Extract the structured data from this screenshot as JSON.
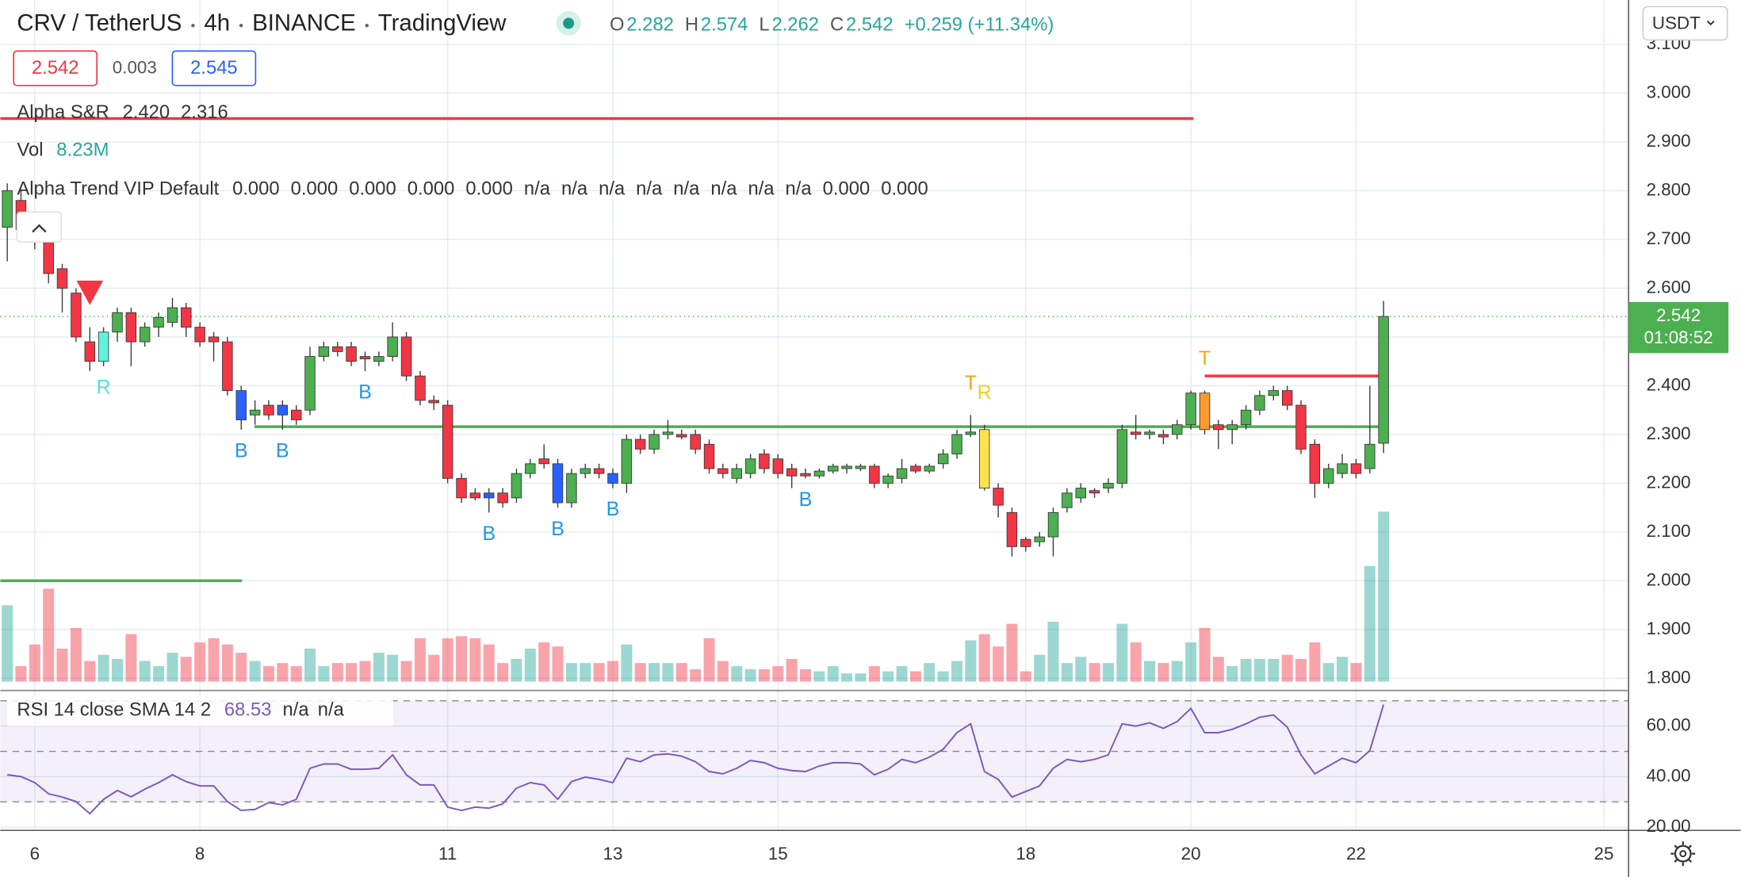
{
  "header": {
    "symbol": "CRV / TetherUS",
    "interval": "4h",
    "exchange": "BINANCE",
    "source": "TradingView",
    "ohlc": [
      {
        "key": "O",
        "value": "2.282"
      },
      {
        "key": "H",
        "value": "2.574"
      },
      {
        "key": "L",
        "value": "2.262"
      },
      {
        "key": "C",
        "value": "2.542"
      }
    ],
    "change": "+0.259 (+11.34%)",
    "sell": "2.542",
    "spread": "0.003",
    "buy": "2.545",
    "currency": "USDT"
  },
  "chart_data": [
    {
      "type": "candlestick",
      "x": [
        5.667,
        5.833,
        6,
        6.167,
        6.333,
        6.5,
        6.667,
        6.833,
        7,
        7.167,
        7.333,
        7.5,
        7.667,
        7.833,
        8,
        8.167,
        8.333,
        8.5,
        8.667,
        8.833,
        9,
        9.167,
        9.333,
        9.5,
        9.667,
        9.833,
        10,
        10.167,
        10.333,
        10.5,
        10.667,
        10.833,
        11,
        11.167,
        11.333,
        11.5,
        11.667,
        11.833,
        12,
        12.167,
        12.333,
        12.5,
        12.667,
        12.833,
        13,
        13.167,
        13.333,
        13.5,
        13.667,
        13.833,
        14,
        14.167,
        14.333,
        14.5,
        14.667,
        14.833,
        15,
        15.167,
        15.333,
        15.5,
        15.667,
        15.833,
        16,
        16.167,
        16.333,
        16.5,
        16.667,
        16.833,
        17,
        17.167,
        17.333,
        17.5,
        17.667,
        17.833,
        18,
        18.167,
        18.333,
        18.5,
        18.667,
        18.833,
        19,
        19.167,
        19.333,
        19.5,
        19.667,
        19.833,
        20,
        20.167,
        20.333,
        20.5,
        20.667,
        20.833,
        21,
        21.167,
        21.333,
        21.5,
        21.667,
        21.833,
        22,
        22.167,
        22.333
      ],
      "open": [
        2.725,
        2.78,
        2.72,
        2.7,
        2.64,
        2.59,
        2.49,
        2.45,
        2.51,
        2.55,
        2.49,
        2.52,
        2.53,
        2.56,
        2.52,
        2.5,
        2.49,
        2.39,
        2.34,
        2.36,
        2.36,
        2.35,
        2.35,
        2.46,
        2.48,
        2.48,
        2.46,
        2.45,
        2.46,
        2.5,
        2.42,
        2.37,
        2.36,
        2.21,
        2.18,
        2.18,
        2.18,
        2.17,
        2.22,
        2.25,
        2.24,
        2.16,
        2.22,
        2.23,
        2.22,
        2.2,
        2.29,
        2.27,
        2.3,
        2.3,
        2.3,
        2.28,
        2.23,
        2.21,
        2.22,
        2.26,
        2.25,
        2.23,
        2.22,
        2.215,
        2.225,
        2.23,
        2.23,
        2.235,
        2.2,
        2.21,
        2.235,
        2.225,
        2.24,
        2.26,
        2.3,
        2.31,
        2.19,
        2.14,
        2.085,
        2.08,
        2.09,
        2.15,
        2.17,
        2.185,
        2.19,
        2.2,
        2.305,
        2.3,
        2.3,
        2.3,
        2.32,
        2.385,
        2.32,
        2.31,
        2.32,
        2.35,
        2.38,
        2.39,
        2.36,
        2.28,
        2.2,
        2.22,
        2.24,
        2.23,
        2.282
      ],
      "high": [
        2.815,
        2.8,
        2.73,
        2.71,
        2.65,
        2.6,
        2.52,
        2.52,
        2.56,
        2.56,
        2.53,
        2.55,
        2.58,
        2.57,
        2.53,
        2.51,
        2.5,
        2.4,
        2.37,
        2.37,
        2.37,
        2.36,
        2.48,
        2.49,
        2.49,
        2.49,
        2.47,
        2.47,
        2.53,
        2.51,
        2.43,
        2.38,
        2.37,
        2.22,
        2.19,
        2.19,
        2.19,
        2.23,
        2.25,
        2.28,
        2.25,
        2.23,
        2.24,
        2.24,
        2.23,
        2.3,
        2.3,
        2.31,
        2.33,
        2.31,
        2.31,
        2.29,
        2.24,
        2.24,
        2.26,
        2.27,
        2.26,
        2.24,
        2.23,
        2.23,
        2.24,
        2.24,
        2.24,
        2.24,
        2.22,
        2.25,
        2.24,
        2.24,
        2.27,
        2.31,
        2.34,
        2.32,
        2.2,
        2.15,
        2.09,
        2.1,
        2.15,
        2.19,
        2.2,
        2.19,
        2.21,
        2.32,
        2.34,
        2.31,
        2.31,
        2.33,
        2.39,
        2.39,
        2.33,
        2.33,
        2.36,
        2.39,
        2.4,
        2.4,
        2.37,
        2.29,
        2.24,
        2.26,
        2.25,
        2.4,
        2.574
      ],
      "low": [
        2.655,
        2.7,
        2.68,
        2.61,
        2.55,
        2.49,
        2.43,
        2.44,
        2.49,
        2.44,
        2.48,
        2.5,
        2.52,
        2.5,
        2.48,
        2.45,
        2.38,
        2.31,
        2.32,
        2.33,
        2.31,
        2.32,
        2.34,
        2.45,
        2.46,
        2.44,
        2.43,
        2.44,
        2.45,
        2.41,
        2.36,
        2.35,
        2.2,
        2.16,
        2.165,
        2.14,
        2.15,
        2.16,
        2.21,
        2.23,
        2.15,
        2.15,
        2.21,
        2.21,
        2.19,
        2.18,
        2.26,
        2.26,
        2.29,
        2.29,
        2.26,
        2.22,
        2.21,
        2.2,
        2.21,
        2.22,
        2.21,
        2.19,
        2.21,
        2.21,
        2.22,
        2.22,
        2.225,
        2.19,
        2.19,
        2.2,
        2.22,
        2.22,
        2.23,
        2.25,
        2.295,
        2.185,
        2.13,
        2.05,
        2.06,
        2.07,
        2.05,
        2.14,
        2.16,
        2.17,
        2.18,
        2.19,
        2.29,
        2.29,
        2.28,
        2.29,
        2.31,
        2.3,
        2.27,
        2.28,
        2.31,
        2.34,
        2.37,
        2.35,
        2.26,
        2.17,
        2.19,
        2.21,
        2.21,
        2.22,
        2.262
      ],
      "close": [
        2.8,
        2.72,
        2.7,
        2.63,
        2.6,
        2.5,
        2.45,
        2.51,
        2.55,
        2.49,
        2.52,
        2.54,
        2.56,
        2.52,
        2.49,
        2.49,
        2.39,
        2.33,
        2.35,
        2.34,
        2.34,
        2.33,
        2.46,
        2.48,
        2.47,
        2.45,
        2.455,
        2.46,
        2.5,
        2.42,
        2.37,
        2.365,
        2.21,
        2.17,
        2.17,
        2.17,
        2.16,
        2.22,
        2.24,
        2.24,
        2.16,
        2.22,
        2.23,
        2.22,
        2.2,
        2.29,
        2.27,
        2.3,
        2.305,
        2.295,
        2.27,
        2.23,
        2.22,
        2.23,
        2.25,
        2.23,
        2.22,
        2.215,
        2.215,
        2.225,
        2.235,
        2.235,
        2.235,
        2.2,
        2.215,
        2.23,
        2.225,
        2.235,
        2.26,
        2.3,
        2.305,
        2.19,
        2.155,
        2.07,
        2.07,
        2.09,
        2.14,
        2.18,
        2.19,
        2.18,
        2.2,
        2.31,
        2.3,
        2.305,
        2.295,
        2.32,
        2.385,
        2.31,
        2.31,
        2.32,
        2.35,
        2.38,
        2.39,
        2.36,
        2.27,
        2.2,
        2.23,
        2.24,
        2.22,
        2.28,
        2.542
      ],
      "up_color": "#4caf50",
      "down_color": "#f23645",
      "highlights": [
        {
          "x": 6.833,
          "color": "#5ff3dc"
        },
        {
          "x": 8.5,
          "color": "#2962ff"
        },
        {
          "x": 9,
          "color": "#2962ff"
        },
        {
          "x": 11.5,
          "color": "#2962ff"
        },
        {
          "x": 12.333,
          "color": "#2962ff"
        },
        {
          "x": 13,
          "color": "#2962ff"
        },
        {
          "x": 17.5,
          "color": "#ffe14d"
        },
        {
          "x": 20.167,
          "color": "#ff9a2e"
        }
      ],
      "xlim": [
        5.583,
        25.3
      ],
      "xticks": [
        6,
        8,
        11,
        13,
        15,
        18,
        20,
        22,
        25
      ],
      "ylim": [
        1.775,
        3.191
      ],
      "yticks": [
        {
          "value": 1.8,
          "label": "1.800"
        },
        {
          "value": 1.9,
          "label": "1.900"
        },
        {
          "value": 2,
          "label": "2.000"
        },
        {
          "value": 2.1,
          "label": "2.100"
        },
        {
          "value": 2.2,
          "label": "2.200"
        },
        {
          "value": 2.3,
          "label": "2.300"
        },
        {
          "value": 2.4,
          "label": "2.400"
        },
        {
          "value": 2.5,
          "label": "2.500"
        },
        {
          "value": 2.6,
          "label": "2.600"
        },
        {
          "value": 2.7,
          "label": "2.700"
        },
        {
          "value": 2.8,
          "label": "2.800"
        },
        {
          "value": 2.9,
          "label": "2.900"
        },
        {
          "value": 3,
          "label": "3.000"
        },
        {
          "value": 3.1,
          "label": "3.100"
        }
      ],
      "grid": true,
      "last_price": {
        "value": 2.542,
        "label": "2.542",
        "countdown": "01:08:52",
        "color": "#4caf50"
      },
      "volume": {
        "name": "Vol",
        "value_label": "8.23M",
        "ylim": [
          0,
          33
        ],
        "up_color": "#26a69a",
        "down_color": "#f23645",
        "values": [
          3.7,
          0.75,
          1.8,
          4.5,
          1.6,
          2.6,
          1.0,
          1.3,
          1.1,
          2.3,
          1.0,
          0.75,
          1.4,
          1.2,
          1.9,
          2.1,
          1.8,
          1.4,
          1.0,
          0.75,
          0.9,
          0.75,
          1.6,
          0.75,
          0.9,
          0.9,
          1.0,
          1.4,
          1.3,
          1.0,
          2.1,
          1.3,
          2.1,
          2.2,
          2.1,
          1.8,
          0.9,
          1.1,
          1.6,
          1.9,
          1.7,
          0.9,
          0.9,
          0.9,
          1.0,
          1.8,
          0.9,
          0.9,
          0.9,
          0.9,
          0.6,
          2.1,
          1.0,
          0.75,
          0.6,
          0.6,
          0.75,
          1.1,
          0.6,
          0.5,
          0.75,
          0.4,
          0.4,
          0.75,
          0.5,
          0.75,
          0.5,
          0.9,
          0.5,
          1.0,
          2.0,
          2.3,
          1.7,
          2.8,
          0.5,
          1.3,
          2.9,
          0.9,
          1.2,
          0.9,
          0.9,
          2.8,
          1.9,
          1.0,
          0.9,
          1.0,
          1.9,
          2.6,
          1.2,
          0.75,
          1.1,
          1.1,
          1.1,
          1.3,
          1.1,
          1.9,
          0.9,
          1.2,
          0.9,
          5.6,
          8.23
        ]
      },
      "support_resistance": {
        "name": "Alpha S&R",
        "lines": [
          {
            "value": 2.42,
            "label": "2.420",
            "color": "#f23645",
            "from": 20.167,
            "to": 22.28
          },
          {
            "value": 2.316,
            "label": "2.316",
            "color": "#4caf50",
            "from": 8.66,
            "to": 22.28
          },
          {
            "value": 2.948,
            "color": "#f23645",
            "from": 5.583,
            "to": 20.03
          },
          {
            "value": 2.0,
            "color": "#4caf50",
            "from": 5.583,
            "to": 8.51
          }
        ]
      },
      "trend": {
        "name": "Alpha Trend VIP Default",
        "values": [
          {
            "text": "0.000",
            "color": "#f7a21b"
          },
          {
            "text": "0.000",
            "color": "#f7a21b"
          },
          {
            "text": "0.000",
            "color": "#2196f3"
          },
          {
            "text": "0.000",
            "color": "#4dd9e6"
          },
          {
            "text": "0.000",
            "color": "#ffe14d"
          },
          {
            "text": "n/a",
            "color": "#222"
          },
          {
            "text": "n/a",
            "color": "#222"
          },
          {
            "text": "n/a",
            "color": "#222"
          },
          {
            "text": "n/a",
            "color": "#222"
          },
          {
            "text": "n/a",
            "color": "#222"
          },
          {
            "text": "n/a",
            "color": "#222"
          },
          {
            "text": "n/a",
            "color": "#222"
          },
          {
            "text": "n/a",
            "color": "#222"
          },
          {
            "text": "0.000",
            "color": "#4caf50"
          },
          {
            "text": "0.000",
            "color": "#f23645"
          }
        ]
      },
      "signals": [
        {
          "x": 6.667,
          "shape": "triangle-down",
          "color": "#f23645",
          "at": "above"
        },
        {
          "x": 6.833,
          "label": "R",
          "color": "#4fe3d2",
          "at": "below"
        },
        {
          "x": 8.5,
          "label": "B",
          "color": "#2196f3",
          "at": "below"
        },
        {
          "x": 9,
          "label": "B",
          "color": "#2196f3",
          "at": "below"
        },
        {
          "x": 10,
          "label": "B",
          "color": "#2196f3",
          "at": "below"
        },
        {
          "x": 11.5,
          "label": "B",
          "color": "#2196f3",
          "at": "below"
        },
        {
          "x": 12.333,
          "label": "B",
          "color": "#2196f3",
          "at": "below"
        },
        {
          "x": 13,
          "label": "B",
          "color": "#2196f3",
          "at": "below"
        },
        {
          "x": 15.333,
          "label": "B",
          "color": "#2196f3",
          "at": "below"
        },
        {
          "x": 17.333,
          "label": "T",
          "color": "#f7a21b",
          "at": "above"
        },
        {
          "x": 17.5,
          "label": "R",
          "color": "#f5cc2a",
          "at": "above"
        },
        {
          "x": 20.167,
          "label": "T",
          "color": "#f7a21b",
          "at": "above"
        }
      ]
    },
    {
      "type": "line",
      "name": "RSI 14 close SMA 14 2",
      "value_label": "68.53",
      "extra_labels": [
        "n/a",
        "n/a"
      ],
      "color": "#7e57c2",
      "band_color": "#7e57c2",
      "values": [
        40.7,
        40,
        37.6,
        33.2,
        31.9,
        30.1,
        25.3,
        31,
        34.5,
        32,
        35,
        37.6,
        40.7,
        38,
        36.3,
        36.3,
        30.1,
        26.6,
        27,
        29.7,
        28.8,
        31,
        43.3,
        45,
        45,
        42.9,
        42.9,
        43.3,
        48.6,
        40.7,
        36.7,
        36.7,
        27.9,
        26.6,
        27.9,
        27.5,
        29.2,
        35.4,
        37.6,
        36.7,
        31,
        38,
        39.8,
        38.9,
        37.6,
        47.3,
        45.9,
        48.6,
        49,
        48.1,
        45.9,
        42,
        41.1,
        43.3,
        46.4,
        45.5,
        43.3,
        42.4,
        42,
        44.2,
        45.5,
        45.5,
        45,
        40.7,
        42.9,
        46.8,
        45.5,
        47.7,
        50.8,
        57.4,
        60.9,
        42,
        38.9,
        31.9,
        34.1,
        36.3,
        43.3,
        46.8,
        45.9,
        46.8,
        48.6,
        60.9,
        60,
        61.3,
        59.1,
        61.8,
        67,
        57.4,
        57.4,
        58.7,
        60.9,
        63.5,
        64.4,
        59.6,
        48.6,
        41.1,
        44.2,
        47.3,
        45.5,
        50.3,
        68.53
      ],
      "ylim": [
        18.7,
        74.1
      ],
      "yticks": [
        {
          "value": 20,
          "label": "20.00"
        },
        {
          "value": 40,
          "label": "40.00"
        },
        {
          "value": 60,
          "label": "60.00"
        }
      ],
      "levels": [
        30,
        50,
        70
      ]
    }
  ]
}
